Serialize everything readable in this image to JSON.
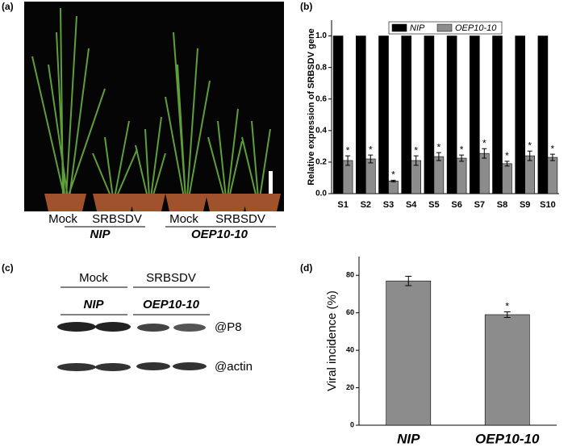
{
  "panel_labels": [
    "(a)",
    "(b)",
    "(c)",
    "(d)"
  ],
  "panel_a": {
    "left_treatments": [
      "Mock",
      "SRBSDV"
    ],
    "left_line": "NIP",
    "right_treatments": [
      "Mock",
      "SRBSDV"
    ],
    "right_line": "OEP10-10"
  },
  "panel_c": {
    "treatments": [
      "Mock",
      "SRBSDV"
    ],
    "lines": [
      "NIP",
      "OEP10-10"
    ],
    "bands": [
      "@P8",
      "@actin"
    ]
  },
  "chart_data": [
    {
      "type": "bar",
      "y_label": "Relative expression of SRBSDV gene",
      "categories": [
        "S1",
        "S2",
        "S3",
        "S4",
        "S5",
        "S6",
        "S7",
        "S8",
        "S9",
        "S10"
      ],
      "series": [
        {
          "name": "NIP",
          "color": "#000000",
          "values": [
            1.0,
            1.0,
            1.0,
            1.0,
            1.0,
            1.0,
            1.0,
            1.0,
            1.0,
            1.0
          ]
        },
        {
          "name": "OEP10-10",
          "color": "#8c8c8c",
          "values": [
            0.21,
            0.22,
            0.08,
            0.21,
            0.235,
            0.225,
            0.255,
            0.19,
            0.24,
            0.23
          ],
          "errors": [
            0.03,
            0.025,
            0.005,
            0.03,
            0.025,
            0.02,
            0.03,
            0.015,
            0.03,
            0.02
          ],
          "annotations": [
            "*",
            "*",
            "*",
            "*",
            "*",
            "*",
            "*",
            "*",
            "*",
            "*"
          ]
        }
      ],
      "ylim": [
        0,
        1.1
      ],
      "yticks": [
        {
          "value": 0,
          "label": "0.0"
        },
        {
          "value": 0.2,
          "label": "0.2"
        },
        {
          "value": 0.4,
          "label": "0.4"
        },
        {
          "value": 0.6,
          "label": "0.6"
        },
        {
          "value": 0.8,
          "label": "0.8"
        },
        {
          "value": 1,
          "label": "1.0"
        }
      ],
      "legend": "top"
    },
    {
      "type": "bar",
      "y_label": "Viral incidence (%)",
      "categories": [
        "NIP",
        "OEP10-10"
      ],
      "series": [
        {
          "color": "#8c8c8c",
          "values": [
            77,
            59
          ],
          "errors": [
            2.5,
            1.5
          ],
          "annotations": [
            null,
            "*"
          ]
        }
      ],
      "ylim": [
        0,
        90
      ],
      "yticks": [
        0,
        20,
        40,
        60,
        80
      ]
    }
  ]
}
